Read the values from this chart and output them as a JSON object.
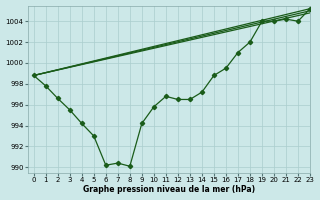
{
  "background_color": "#cce8e8",
  "grid_color": "#aacece",
  "line_color": "#1a5c1a",
  "title": "Graphe pression niveau de la mer (hPa)",
  "xlim": [
    -0.5,
    23
  ],
  "ylim": [
    989.5,
    1005.5
  ],
  "yticks": [
    990,
    992,
    994,
    996,
    998,
    1000,
    1002,
    1004
  ],
  "xticks": [
    0,
    1,
    2,
    3,
    4,
    5,
    6,
    7,
    8,
    9,
    10,
    11,
    12,
    13,
    14,
    15,
    16,
    17,
    18,
    19,
    20,
    21,
    22,
    23
  ],
  "detail_line": {
    "x": [
      0,
      1,
      2,
      3,
      4,
      5,
      6,
      7,
      8,
      9,
      10,
      11,
      12,
      13,
      14,
      15,
      16,
      17,
      18,
      19,
      20,
      21,
      22,
      23
    ],
    "y": [
      998.8,
      997.8,
      996.6,
      995.5,
      994.2,
      993.0,
      990.2,
      990.4,
      990.1,
      994.2,
      995.8,
      996.8,
      996.5,
      996.5,
      997.2,
      998.8,
      999.5,
      1001.0,
      1002.0,
      1004.0,
      1004.0,
      1004.2,
      1004.0,
      1005.2
    ]
  },
  "trend_lines": [
    {
      "x": [
        0,
        23
      ],
      "y": [
        998.8,
        1004.8
      ]
    },
    {
      "x": [
        0,
        23
      ],
      "y": [
        998.8,
        1005.0
      ]
    },
    {
      "x": [
        0,
        23
      ],
      "y": [
        998.8,
        1005.2
      ]
    }
  ]
}
